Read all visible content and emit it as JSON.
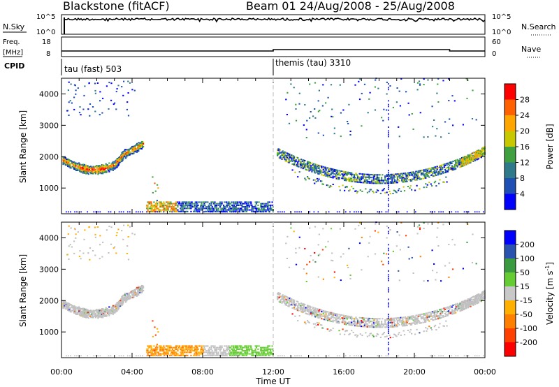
{
  "header": {
    "station": "Blackstone (fitACF)",
    "beam_date": "Beam 01  24/Aug/2008 - 25/Aug/2008"
  },
  "top_panels": {
    "nsky_label": "N.Sky",
    "nsky_ticks": [
      "10^5",
      "10^0"
    ],
    "nsearch_label": "N.Search",
    "nsearch_ticks": [
      "10^5",
      "10^0"
    ],
    "freq_label_line1": "Freq.",
    "freq_label_line2": "[MHz]",
    "freq_ticks": [
      "18",
      "8"
    ],
    "nave_label": "Nave",
    "nave_ticks": [
      "60",
      "0"
    ],
    "cpid_label": "CPID",
    "cpid_segments": [
      {
        "label": "tau (fast) 503",
        "start_hour": 0
      },
      {
        "label": "themis (tau) 3310",
        "start_hour": 12
      }
    ]
  },
  "colors": {
    "power_scale": [
      "#0000ff",
      "#1e4fb4",
      "#2f7a8a",
      "#3fa040",
      "#c8c800",
      "#ffa500",
      "#ff6000",
      "#ff0000"
    ],
    "velocity_scale": [
      "#0000ff",
      "#2a53b0",
      "#3a9a40",
      "#66cc33",
      "#c8c8c8",
      "#ffb000",
      "#ff8000",
      "#ff4000",
      "#ff0000"
    ],
    "ground_scatter": "#c0c0c0"
  },
  "power_colorbar": {
    "label": "Power [dB]",
    "ticks": [
      "28",
      "24",
      "20",
      "16",
      "12",
      "8",
      "4"
    ]
  },
  "velocity_colorbar": {
    "label": "Velocity [m s",
    "label_sup": "-1",
    "label_end": "]",
    "ticks": [
      "200",
      "100",
      "50",
      "15",
      "-15",
      "-50",
      "-100",
      "-200"
    ]
  },
  "chart_data": [
    {
      "type": "heatmap",
      "panel": "power",
      "ylabel": "Slant Range [km]",
      "xlabel": "",
      "xlim": [
        0,
        24
      ],
      "ylim": [
        180,
        4500
      ],
      "yticks": [
        1000,
        2000,
        3000,
        4000
      ],
      "xticks": [
        "00:00",
        "04:00",
        "08:00",
        "12:00",
        "16:00",
        "20:00",
        "00:00"
      ],
      "colorbar": "Power [dB]",
      "clim": [
        0,
        30
      ]
    },
    {
      "type": "heatmap",
      "panel": "velocity",
      "ylabel": "Slant Range [km]",
      "xlabel": "Time UT",
      "xlim": [
        0,
        24
      ],
      "ylim": [
        180,
        4500
      ],
      "yticks": [
        1000,
        2000,
        3000,
        4000
      ],
      "xticks": [
        "00:00",
        "04:00",
        "08:00",
        "12:00",
        "16:00",
        "20:00",
        "00:00"
      ],
      "colorbar": "Velocity [m s-1]",
      "clim": [
        -250,
        250
      ]
    }
  ]
}
